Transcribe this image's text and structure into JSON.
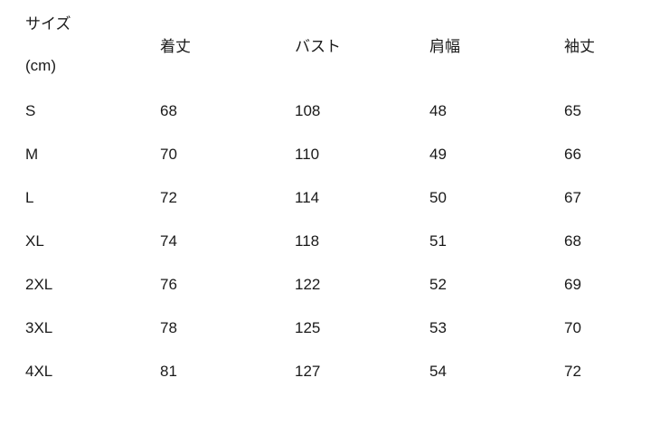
{
  "colors": {
    "background": "#ffffff",
    "text": "#1a1a1a"
  },
  "chart_data": {
    "type": "table",
    "title": "サイズ (cm)",
    "header": {
      "size_label": "サイズ",
      "size_unit": "(cm)",
      "measurement_columns": [
        "着丈",
        "バスト",
        "肩幅",
        "袖丈"
      ]
    },
    "columns": [
      "サイズ (cm)",
      "着丈",
      "バスト",
      "肩幅",
      "袖丈"
    ],
    "rows": [
      {
        "size": "S",
        "values": [
          68,
          108,
          48,
          65
        ]
      },
      {
        "size": "M",
        "values": [
          70,
          110,
          49,
          66
        ]
      },
      {
        "size": "L",
        "values": [
          72,
          114,
          50,
          67
        ]
      },
      {
        "size": "XL",
        "values": [
          74,
          118,
          51,
          68
        ]
      },
      {
        "size": "2XL",
        "values": [
          76,
          122,
          52,
          69
        ]
      },
      {
        "size": "3XL",
        "values": [
          78,
          125,
          53,
          70
        ]
      },
      {
        "size": "4XL",
        "values": [
          81,
          127,
          54,
          72
        ]
      }
    ]
  }
}
